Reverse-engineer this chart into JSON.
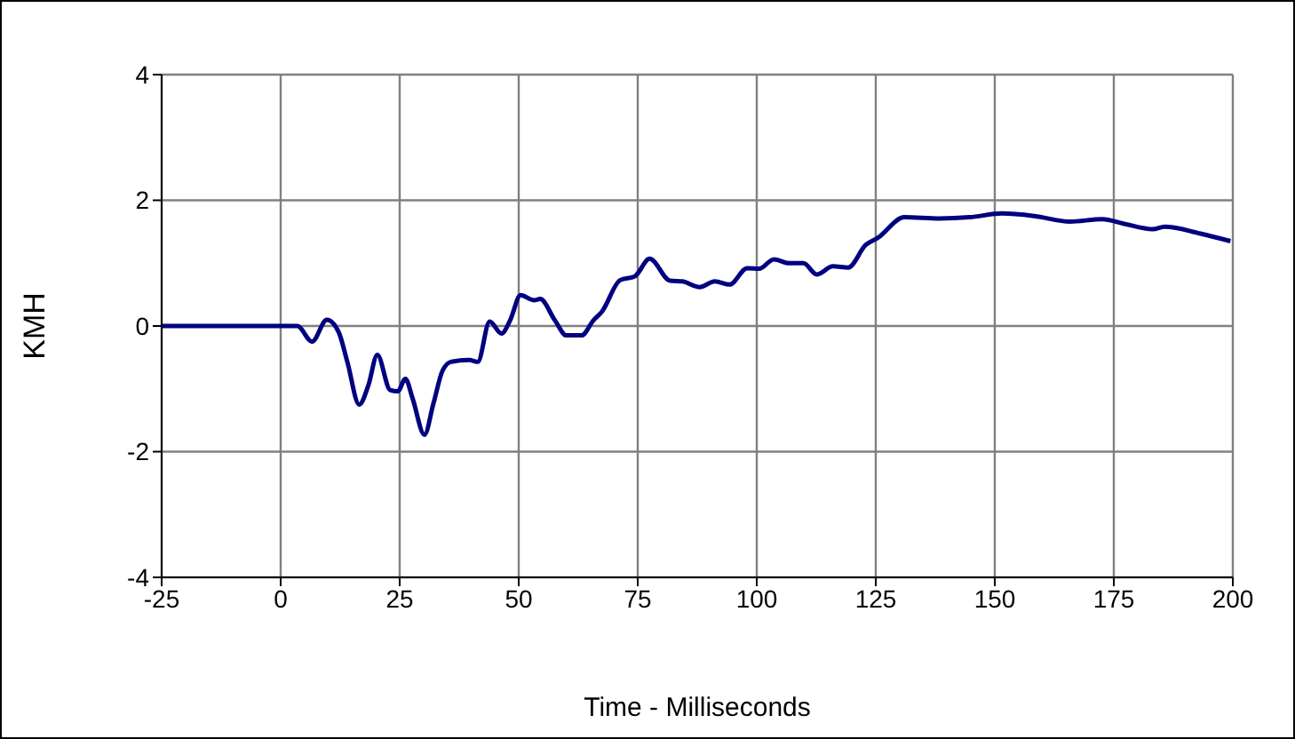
{
  "chart_data": {
    "type": "line",
    "xlabel": "Time - Milliseconds",
    "ylabel": "KMH",
    "xlim": [
      -25,
      200
    ],
    "xticks": [
      -25,
      0,
      25,
      50,
      75,
      100,
      125,
      150,
      175,
      200
    ],
    "ylim": [
      -4,
      4
    ],
    "yticks": [
      -4,
      -2,
      0,
      2,
      4
    ],
    "grid": true,
    "legend": false,
    "marker": "none",
    "line_style": "solid",
    "series": [
      {
        "color": "#000080",
        "x": [
          -25,
          3.5,
          6.6,
          9.7,
          12.2,
          14,
          16.5,
          18.4,
          20.3,
          23,
          24.6,
          26.2,
          27.7,
          30.2,
          32.1,
          34,
          35.8,
          39.6,
          41.4,
          43.9,
          46.4,
          48.2,
          50.4,
          53.2,
          54.5,
          57.6,
          60,
          63.2,
          65.7,
          67.5,
          71.3,
          74.4,
          77.5,
          81.8,
          84.3,
          88,
          91.2,
          94.3,
          98,
          100.5,
          103.6,
          106.7,
          109.8,
          112.6,
          116,
          119.2,
          122.9,
          125.4,
          131,
          138.4,
          144.7,
          151.5,
          158.3,
          165.8,
          172.6,
          177,
          183.2,
          185.7,
          193.2,
          199.5
        ],
        "values": [
          0,
          0,
          -0.25,
          0.1,
          -0.1,
          -0.57,
          -1.25,
          -0.95,
          -0.46,
          -1.02,
          -1.04,
          -0.84,
          -1.15,
          -1.73,
          -1.23,
          -0.71,
          -0.57,
          -0.54,
          -0.57,
          0.07,
          -0.12,
          0.09,
          0.49,
          0.41,
          0.43,
          0.09,
          -0.15,
          -0.15,
          0.09,
          0.23,
          0.73,
          0.79,
          1.07,
          0.72,
          0.71,
          0.62,
          0.71,
          0.66,
          0.92,
          0.91,
          1.06,
          1,
          1,
          0.82,
          0.95,
          0.93,
          1.29,
          1.4,
          1.73,
          1.71,
          1.73,
          1.79,
          1.75,
          1.66,
          1.7,
          1.63,
          1.54,
          1.58,
          1.47,
          1.35
        ]
      }
    ]
  }
}
